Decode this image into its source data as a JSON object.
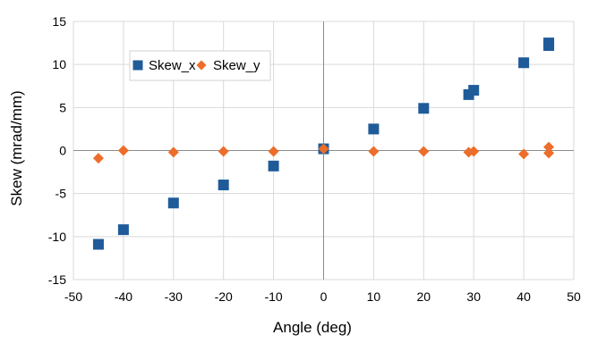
{
  "chart_data": {
    "type": "scatter",
    "title": "",
    "xlabel": "Angle (deg)",
    "ylabel": "Skew (mrad/mm)",
    "xlim": [
      -50,
      50
    ],
    "ylim": [
      -15,
      15
    ],
    "xticks": [
      -50,
      -40,
      -30,
      -20,
      -10,
      0,
      10,
      20,
      30,
      40,
      50
    ],
    "yticks": [
      -15,
      -10,
      -5,
      0,
      5,
      10,
      15
    ],
    "grid": true,
    "legend_position": "top-left",
    "series": [
      {
        "name": "Skew_x",
        "marker": "square",
        "color": "#1f5b99",
        "x": [
          -45,
          -40,
          -30,
          -20,
          -10,
          0,
          10,
          20,
          29,
          30,
          40,
          45,
          45
        ],
        "y": [
          -10.9,
          -9.2,
          -6.1,
          -4.0,
          -1.8,
          0.2,
          2.5,
          4.9,
          6.5,
          7.0,
          10.2,
          12.2,
          12.5
        ]
      },
      {
        "name": "Skew_y",
        "marker": "diamond",
        "color": "#ed6d2a",
        "x": [
          -45,
          -40,
          -30,
          -20,
          -10,
          0,
          10,
          20,
          29,
          30,
          40,
          45,
          45
        ],
        "y": [
          -0.9,
          0.0,
          -0.2,
          -0.1,
          -0.1,
          0.2,
          -0.1,
          -0.1,
          -0.2,
          -0.1,
          -0.4,
          0.4,
          -0.3
        ]
      }
    ]
  }
}
